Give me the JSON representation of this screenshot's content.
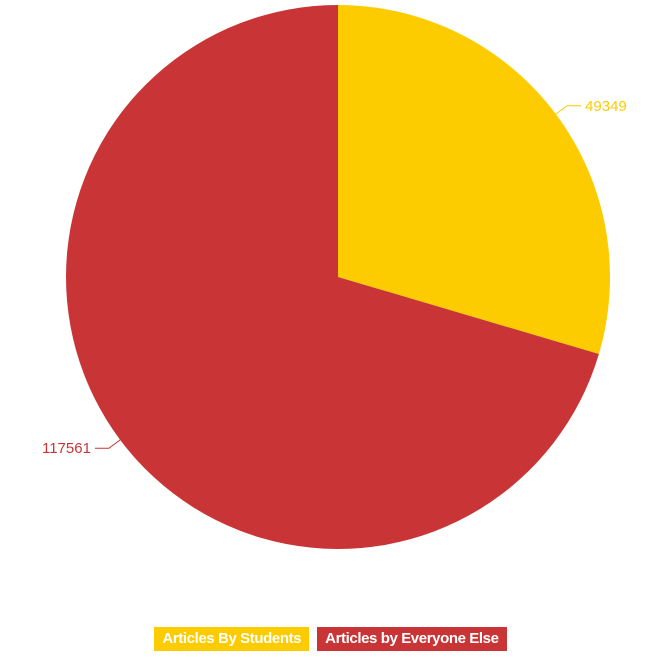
{
  "chart_data": {
    "type": "pie",
    "series": [
      {
        "name": "Articles By Students",
        "value": 49349,
        "color": "#fdcc00"
      },
      {
        "name": "Articles by Everyone Else",
        "value": 117561,
        "color": "#c93536"
      }
    ],
    "legend_position": "bottom-center"
  }
}
